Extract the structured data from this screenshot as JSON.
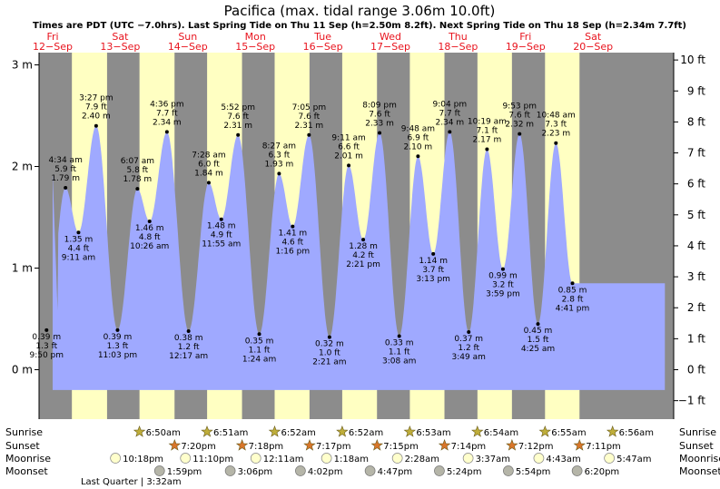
{
  "header": {
    "title": "Pacifica (max. tidal range 3.06m 10.0ft)",
    "subtitle": "Times are PDT (UTC −7.0hrs). Last Spring Tide on Thu 11 Sep (h=2.50m 8.2ft). Next Spring Tide on Thu 18 Sep (h=2.34m 7.7ft)"
  },
  "colors": {
    "night": "#8c8c8c",
    "day": "#ffffc2",
    "water": "#9fa9ff",
    "day_label": "#e8141e",
    "sunrise_star": "#bfae3a",
    "sunset_star": "#d9762a",
    "moonrise": "#ffffcc",
    "moonset": "#b5b5a8"
  },
  "days": [
    {
      "dow": "Fri",
      "date": "12−Sep"
    },
    {
      "dow": "Sat",
      "date": "13−Sep"
    },
    {
      "dow": "Sun",
      "date": "14−Sep"
    },
    {
      "dow": "Mon",
      "date": "15−Sep"
    },
    {
      "dow": "Tue",
      "date": "16−Sep"
    },
    {
      "dow": "Wed",
      "date": "17−Sep"
    },
    {
      "dow": "Thu",
      "date": "18−Sep"
    },
    {
      "dow": "Fri",
      "date": "19−Sep"
    },
    {
      "dow": "Sat",
      "date": "20−Sep"
    }
  ],
  "chart_data": {
    "type": "area",
    "title": "Pacifica (max. tidal range 3.06m 10.0ft)",
    "x_unit": "hours from 00:00 Fri 12-Sep (PDT)",
    "xlim": [
      -5.4,
      220.3
    ],
    "ylim": [
      -0.5,
      3.1
    ],
    "y_left_ticks": [
      {
        "v": 0,
        "label": "0 m"
      },
      {
        "v": 1,
        "label": "1 m"
      },
      {
        "v": 2,
        "label": "2 m"
      },
      {
        "v": 3,
        "label": "3 m"
      }
    ],
    "y_right_ticks": [
      {
        "ft": 10,
        "label": "10 ft"
      },
      {
        "ft": 9,
        "label": "9 ft"
      },
      {
        "ft": 8,
        "label": "8 ft"
      },
      {
        "ft": 7,
        "label": "7 ft"
      },
      {
        "ft": 6,
        "label": "6 ft"
      },
      {
        "ft": 5,
        "label": "5 ft"
      },
      {
        "ft": 4,
        "label": "4 ft"
      },
      {
        "ft": 3,
        "label": "3 ft"
      },
      {
        "ft": 2,
        "label": "2 ft"
      },
      {
        "ft": 1,
        "label": "1 ft"
      },
      {
        "ft": 0,
        "label": "0 ft"
      },
      {
        "ft": -1,
        "label": "−1 ft"
      }
    ],
    "series_start": {
      "t": 0.0,
      "h": 1.93
    },
    "series_end_t": 217.5,
    "tides": [
      {
        "t": -2.17,
        "h": 0.39,
        "m": "0.39 m",
        "ft": "1.3 ft",
        "time": "9:50 pm",
        "kind": "low"
      },
      {
        "t": 4.57,
        "h": 1.79,
        "m": "1.79 m",
        "ft": "5.9 ft",
        "time": "4:34 am",
        "kind": "high"
      },
      {
        "t": 9.18,
        "h": 1.35,
        "m": "1.35 m",
        "ft": "4.4 ft",
        "time": "9:11 am",
        "kind": "low"
      },
      {
        "t": 15.45,
        "h": 2.4,
        "m": "2.40 m",
        "ft": "7.9 ft",
        "time": "3:27 pm",
        "kind": "high"
      },
      {
        "t": 23.05,
        "h": 0.39,
        "m": "0.39 m",
        "ft": "1.3 ft",
        "time": "11:03 pm",
        "kind": "low"
      },
      {
        "t": 30.12,
        "h": 1.78,
        "m": "1.78 m",
        "ft": "5.8 ft",
        "time": "6:07 am",
        "kind": "high"
      },
      {
        "t": 34.43,
        "h": 1.46,
        "m": "1.46 m",
        "ft": "4.8 ft",
        "time": "10:26 am",
        "kind": "low"
      },
      {
        "t": 40.6,
        "h": 2.34,
        "m": "2.34 m",
        "ft": "7.7 ft",
        "time": "4:36 pm",
        "kind": "high"
      },
      {
        "t": 48.28,
        "h": 0.38,
        "m": "0.38 m",
        "ft": "1.2 ft",
        "time": "12:17 am",
        "kind": "low"
      },
      {
        "t": 55.47,
        "h": 1.84,
        "m": "1.84 m",
        "ft": "6.0 ft",
        "time": "7:28 am",
        "kind": "high"
      },
      {
        "t": 59.92,
        "h": 1.48,
        "m": "1.48 m",
        "ft": "4.9 ft",
        "time": "11:55 am",
        "kind": "low"
      },
      {
        "t": 65.87,
        "h": 2.31,
        "m": "2.31 m",
        "ft": "7.6 ft",
        "time": "5:52 pm",
        "kind": "high"
      },
      {
        "t": 73.4,
        "h": 0.35,
        "m": "0.35 m",
        "ft": "1.1 ft",
        "time": "1:24 am",
        "kind": "low"
      },
      {
        "t": 80.45,
        "h": 1.93,
        "m": "1.93 m",
        "ft": "6.3 ft",
        "time": "8:27 am",
        "kind": "high"
      },
      {
        "t": 85.27,
        "h": 1.41,
        "m": "1.41 m",
        "ft": "4.6 ft",
        "time": "1:16 pm",
        "kind": "low"
      },
      {
        "t": 91.08,
        "h": 2.31,
        "m": "2.31 m",
        "ft": "7.6 ft",
        "time": "7:05 pm",
        "kind": "high"
      },
      {
        "t": 98.35,
        "h": 0.32,
        "m": "0.32 m",
        "ft": "1.0 ft",
        "time": "2:21 am",
        "kind": "low"
      },
      {
        "t": 105.18,
        "h": 2.01,
        "m": "2.01 m",
        "ft": "6.6 ft",
        "time": "9:11 am",
        "kind": "high"
      },
      {
        "t": 110.35,
        "h": 1.28,
        "m": "1.28 m",
        "ft": "4.2 ft",
        "time": "2:21 pm",
        "kind": "low"
      },
      {
        "t": 116.15,
        "h": 2.33,
        "m": "2.33 m",
        "ft": "7.6 ft",
        "time": "8:09 pm",
        "kind": "high"
      },
      {
        "t": 123.13,
        "h": 0.33,
        "m": "0.33 m",
        "ft": "1.1 ft",
        "time": "3:08 am",
        "kind": "low"
      },
      {
        "t": 129.8,
        "h": 2.1,
        "m": "2.10 m",
        "ft": "6.9 ft",
        "time": "9:48 am",
        "kind": "high"
      },
      {
        "t": 135.22,
        "h": 1.14,
        "m": "1.14 m",
        "ft": "3.7 ft",
        "time": "3:13 pm",
        "kind": "low"
      },
      {
        "t": 141.07,
        "h": 2.34,
        "m": "2.34 m",
        "ft": "7.7 ft",
        "time": "9:04 pm",
        "kind": "high"
      },
      {
        "t": 147.82,
        "h": 0.37,
        "m": "0.37 m",
        "ft": "1.2 ft",
        "time": "3:49 am",
        "kind": "low"
      },
      {
        "t": 154.32,
        "h": 2.17,
        "m": "2.17 m",
        "ft": "7.1 ft",
        "time": "10:19 am",
        "kind": "high"
      },
      {
        "t": 159.98,
        "h": 0.99,
        "m": "0.99 m",
        "ft": "3.2 ft",
        "time": "3:59 pm",
        "kind": "low"
      },
      {
        "t": 165.88,
        "h": 2.32,
        "m": "2.32 m",
        "ft": "7.6 ft",
        "time": "9:53 pm",
        "kind": "high"
      },
      {
        "t": 172.42,
        "h": 0.45,
        "m": "0.45 m",
        "ft": "1.5 ft",
        "time": "4:25 am",
        "kind": "low"
      },
      {
        "t": 178.8,
        "h": 2.23,
        "m": "2.23 m",
        "ft": "7.3 ft",
        "time": "10:48 am",
        "kind": "high"
      },
      {
        "t": 184.68,
        "h": 0.85,
        "m": "0.85 m",
        "ft": "2.8 ft",
        "time": "4:41 pm",
        "kind": "low"
      }
    ],
    "sunrise_hours": [
      6.83,
      30.85,
      54.87,
      78.87,
      102.88,
      126.9,
      150.92,
      174.93
    ],
    "sunset_hours": [
      19.33,
      43.3,
      67.28,
      91.25,
      115.23,
      139.2,
      163.18,
      187.18
    ]
  },
  "events": {
    "row_labels": {
      "sunrise": "Sunrise",
      "sunset": "Sunset",
      "moonrise": "Moonrise",
      "moonset": "Moonset"
    },
    "sunrise": [
      {
        "t": 30.83,
        "label": "6:50am"
      },
      {
        "t": 54.85,
        "label": "6:51am"
      },
      {
        "t": 78.87,
        "label": "6:52am"
      },
      {
        "t": 102.87,
        "label": "6:52am"
      },
      {
        "t": 126.88,
        "label": "6:53am"
      },
      {
        "t": 150.9,
        "label": "6:54am"
      },
      {
        "t": 174.92,
        "label": "6:55am"
      },
      {
        "t": 198.93,
        "label": "6:56am"
      }
    ],
    "sunset": [
      {
        "t": 43.33,
        "label": "7:20pm"
      },
      {
        "t": 67.3,
        "label": "7:18pm"
      },
      {
        "t": 91.28,
        "label": "7:17pm"
      },
      {
        "t": 115.25,
        "label": "7:15pm"
      },
      {
        "t": 139.23,
        "label": "7:14pm"
      },
      {
        "t": 163.2,
        "label": "7:12pm"
      },
      {
        "t": 187.18,
        "label": "7:11pm"
      }
    ],
    "moonrise": [
      {
        "t": 22.3,
        "label": "10:18pm"
      },
      {
        "t": 47.17,
        "label": "11:10pm"
      },
      {
        "t": 72.18,
        "label": "12:11am"
      },
      {
        "t": 97.3,
        "label": "1:18am"
      },
      {
        "t": 122.47,
        "label": "2:28am"
      },
      {
        "t": 147.62,
        "label": "3:37am"
      },
      {
        "t": 172.72,
        "label": "4:43am"
      },
      {
        "t": 197.78,
        "label": "5:47am"
      }
    ],
    "moonset": [
      {
        "t": 37.98,
        "label": "1:59pm"
      },
      {
        "t": 63.1,
        "label": "3:06pm"
      },
      {
        "t": 88.03,
        "label": "4:02pm"
      },
      {
        "t": 112.78,
        "label": "4:47pm"
      },
      {
        "t": 137.4,
        "label": "5:24pm"
      },
      {
        "t": 161.9,
        "label": "5:54pm"
      },
      {
        "t": 186.33,
        "label": "6:20pm"
      }
    ],
    "moon_phase": {
      "t": 27.53,
      "label": "Last Quarter | 3:32am"
    }
  }
}
